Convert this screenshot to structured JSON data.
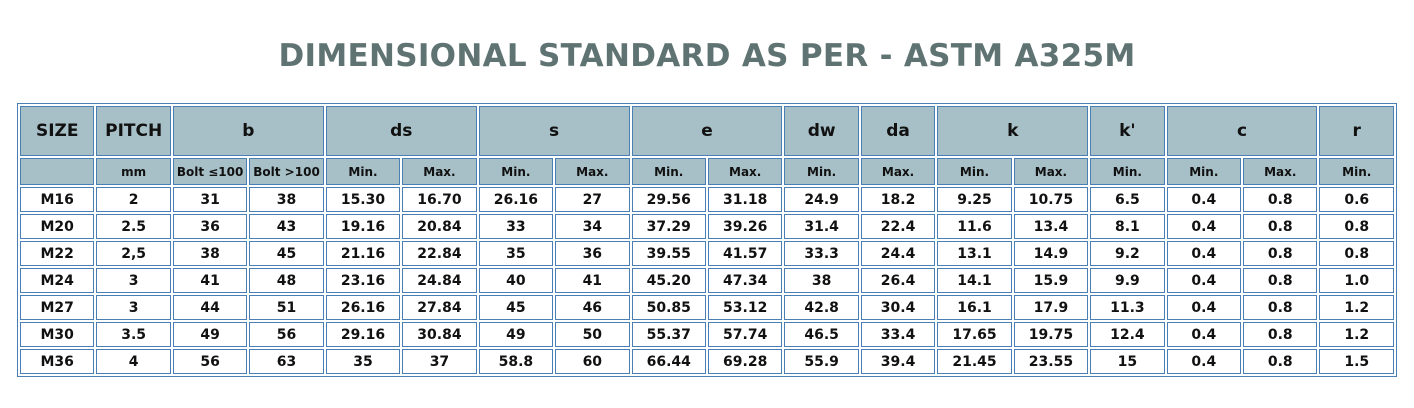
{
  "title": "DIMENSIONAL STANDARD AS PER - ASTM A325M",
  "header_groups": [
    {
      "label": "SIZE",
      "span": 1
    },
    {
      "label": "PITCH",
      "span": 1
    },
    {
      "label": "b",
      "span": 2
    },
    {
      "label": "ds",
      "span": 2
    },
    {
      "label": "s",
      "span": 2
    },
    {
      "label": "e",
      "span": 2
    },
    {
      "label": "dw",
      "span": 1
    },
    {
      "label": "da",
      "span": 1
    },
    {
      "label": "k",
      "span": 2
    },
    {
      "label": "k'",
      "span": 1
    },
    {
      "label": "c",
      "span": 2
    },
    {
      "label": "r",
      "span": 1
    }
  ],
  "subheaders": [
    "",
    "mm",
    "Bolt ≤100",
    "Bolt >100",
    "Min.",
    "Max.",
    "Min.",
    "Max.",
    "Min.",
    "Max.",
    "Min.",
    "Max.",
    "Min.",
    "Max.",
    "Min.",
    "Min.",
    "Max.",
    "Min."
  ],
  "rows": [
    [
      "M16",
      "2",
      "31",
      "38",
      "15.30",
      "16.70",
      "26.16",
      "27",
      "29.56",
      "31.18",
      "24.9",
      "18.2",
      "9.25",
      "10.75",
      "6.5",
      "0.4",
      "0.8",
      "0.6"
    ],
    [
      "M20",
      "2.5",
      "36",
      "43",
      "19.16",
      "20.84",
      "33",
      "34",
      "37.29",
      "39.26",
      "31.4",
      "22.4",
      "11.6",
      "13.4",
      "8.1",
      "0.4",
      "0.8",
      "0.8"
    ],
    [
      "M22",
      "2,5",
      "38",
      "45",
      "21.16",
      "22.84",
      "35",
      "36",
      "39.55",
      "41.57",
      "33.3",
      "24.4",
      "13.1",
      "14.9",
      "9.2",
      "0.4",
      "0.8",
      "0.8"
    ],
    [
      "M24",
      "3",
      "41",
      "48",
      "23.16",
      "24.84",
      "40",
      "41",
      "45.20",
      "47.34",
      "38",
      "26.4",
      "14.1",
      "15.9",
      "9.9",
      "0.4",
      "0.8",
      "1.0"
    ],
    [
      "M27",
      "3",
      "44",
      "51",
      "26.16",
      "27.84",
      "45",
      "46",
      "50.85",
      "53.12",
      "42.8",
      "30.4",
      "16.1",
      "17.9",
      "11.3",
      "0.4",
      "0.8",
      "1.2"
    ],
    [
      "M30",
      "3.5",
      "49",
      "56",
      "29.16",
      "30.84",
      "49",
      "50",
      "55.37",
      "57.74",
      "46.5",
      "33.4",
      "17.65",
      "19.75",
      "12.4",
      "0.4",
      "0.8",
      "1.2"
    ],
    [
      "M36",
      "4",
      "56",
      "63",
      "35",
      "37",
      "58.8",
      "60",
      "66.44",
      "69.28",
      "55.9",
      "39.4",
      "21.45",
      "23.55",
      "15",
      "0.4",
      "0.8",
      "1.5"
    ]
  ],
  "colors": {
    "title": "#5f7372",
    "header_bg": "#a7c0c7",
    "grid_line": "#4a7fb5"
  }
}
